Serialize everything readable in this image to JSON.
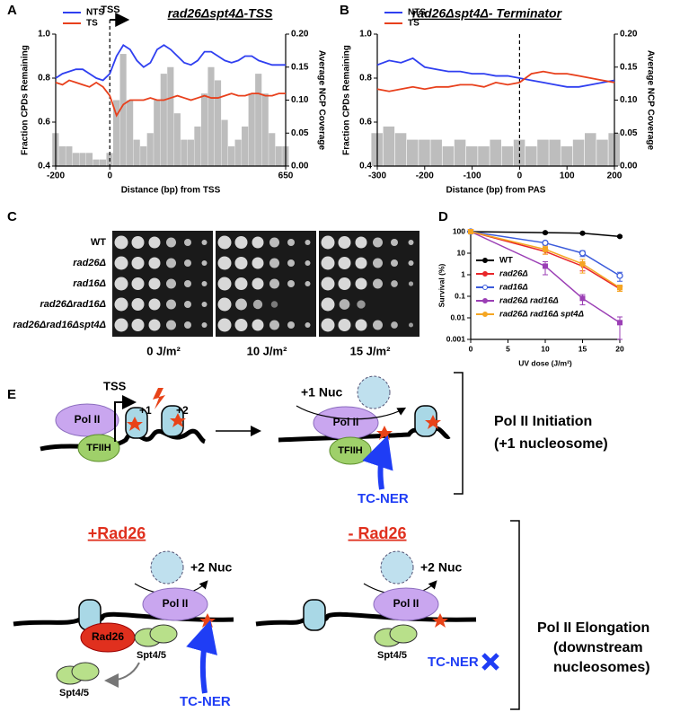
{
  "panel_labels": [
    "A",
    "B",
    "C",
    "D",
    "E"
  ],
  "chart_data": [
    {
      "type": "line",
      "title": "rad26Δspt4Δ-TSS",
      "annotation": "TSS",
      "xlabel": "Distance (bp) from TSS",
      "ylabel": "Fraction CPDs Remaining",
      "y2label": "Average NCP Coverage",
      "x": [
        -200,
        -175,
        -150,
        -125,
        -100,
        -75,
        -50,
        -25,
        0,
        25,
        50,
        75,
        100,
        125,
        150,
        175,
        200,
        225,
        250,
        275,
        300,
        325,
        350,
        375,
        400,
        425,
        450,
        475,
        500,
        525,
        550,
        575,
        600,
        625,
        650
      ],
      "xlim": [
        -200,
        650
      ],
      "xticks": [
        -200,
        0,
        650
      ],
      "ylim": [
        0.4,
        1.0
      ],
      "yticks": [
        0.4,
        0.6,
        0.8,
        {
          "value": 1.0,
          "label": "1.0"
        }
      ],
      "y2lim": [
        0,
        0.2
      ],
      "y2ticks": [
        {
          "value": 0,
          "label": "0.00"
        },
        {
          "value": 0.05,
          "label": "0.05"
        },
        {
          "value": 0.1,
          "label": "0.10"
        },
        {
          "value": 0.15,
          "label": "0.15"
        },
        {
          "value": 0.2,
          "label": "0.20"
        }
      ],
      "vline": 0,
      "legend": "upper left",
      "coverage": {
        "color": "#bdbdbd",
        "axis": "y2",
        "values": [
          0.05,
          0.03,
          0.03,
          0.02,
          0.02,
          0.02,
          0.01,
          0.01,
          0.02,
          0.1,
          0.17,
          0.1,
          0.04,
          0.03,
          0.05,
          0.1,
          0.14,
          0.15,
          0.08,
          0.04,
          0.04,
          0.06,
          0.11,
          0.15,
          0.13,
          0.07,
          0.03,
          0.04,
          0.06,
          0.11,
          0.14,
          0.11,
          0.05,
          0.03,
          0.03
        ]
      },
      "series": [
        {
          "name": "NTS",
          "color": "#2f3ff0",
          "values": [
            0.8,
            0.82,
            0.83,
            0.84,
            0.84,
            0.82,
            0.8,
            0.79,
            0.82,
            0.9,
            0.95,
            0.93,
            0.88,
            0.85,
            0.87,
            0.93,
            0.95,
            0.93,
            0.9,
            0.87,
            0.86,
            0.88,
            0.92,
            0.92,
            0.9,
            0.88,
            0.87,
            0.88,
            0.9,
            0.9,
            0.88,
            0.87,
            0.86,
            0.86,
            0.86
          ]
        },
        {
          "name": "TS",
          "color": "#e8401c",
          "values": [
            0.78,
            0.77,
            0.79,
            0.78,
            0.77,
            0.76,
            0.78,
            0.76,
            0.72,
            0.63,
            0.68,
            0.7,
            0.7,
            0.7,
            0.71,
            0.7,
            0.7,
            0.71,
            0.72,
            0.71,
            0.7,
            0.71,
            0.72,
            0.71,
            0.71,
            0.72,
            0.73,
            0.72,
            0.72,
            0.73,
            0.73,
            0.72,
            0.72,
            0.73,
            0.73
          ]
        }
      ]
    },
    {
      "type": "line",
      "title": "rad26Δspt4Δ- Terminator",
      "xlabel": "Distance (bp) from PAS",
      "ylabel": "Fraction CPDs Remaining",
      "y2label": "Average NCP Coverage",
      "x": [
        -300,
        -275,
        -250,
        -225,
        -200,
        -175,
        -150,
        -125,
        -100,
        -75,
        -50,
        -25,
        0,
        25,
        50,
        75,
        100,
        125,
        150,
        175,
        200
      ],
      "xlim": [
        -300,
        200
      ],
      "xticks": [
        -300,
        -200,
        -100,
        0,
        100,
        200
      ],
      "ylim": [
        0.4,
        1.0
      ],
      "yticks": [
        0.4,
        0.6,
        0.8,
        {
          "value": 1.0,
          "label": "1.0"
        }
      ],
      "y2lim": [
        0,
        0.2
      ],
      "y2ticks": [
        {
          "value": 0,
          "label": "0.00"
        },
        {
          "value": 0.05,
          "label": "0.05"
        },
        {
          "value": 0.1,
          "label": "0.10"
        },
        {
          "value": 0.15,
          "label": "0.15"
        },
        {
          "value": 0.2,
          "label": "0.20"
        }
      ],
      "vline": 0,
      "legend": "upper left",
      "coverage": {
        "color": "#bdbdbd",
        "axis": "y2",
        "values": [
          0.05,
          0.06,
          0.05,
          0.04,
          0.04,
          0.04,
          0.03,
          0.04,
          0.03,
          0.03,
          0.04,
          0.03,
          0.04,
          0.03,
          0.04,
          0.04,
          0.03,
          0.04,
          0.05,
          0.04,
          0.05
        ]
      },
      "series": [
        {
          "name": "NTS",
          "color": "#2f3ff0",
          "values": [
            0.86,
            0.88,
            0.87,
            0.89,
            0.85,
            0.84,
            0.83,
            0.83,
            0.82,
            0.82,
            0.81,
            0.81,
            0.8,
            0.79,
            0.78,
            0.77,
            0.76,
            0.76,
            0.77,
            0.78,
            0.79
          ]
        },
        {
          "name": "TS",
          "color": "#e8401c",
          "values": [
            0.75,
            0.74,
            0.75,
            0.76,
            0.75,
            0.76,
            0.76,
            0.77,
            0.77,
            0.76,
            0.78,
            0.77,
            0.78,
            0.82,
            0.83,
            0.82,
            0.82,
            0.81,
            0.8,
            0.79,
            0.78
          ]
        }
      ]
    },
    {
      "type": "line",
      "xlabel": "UV dose (J/m²)",
      "ylabel": "Survival (%)",
      "log_y": true,
      "x": [
        0,
        10,
        15,
        20
      ],
      "xlim": [
        0,
        20
      ],
      "xticks": [
        0,
        5,
        10,
        15,
        20
      ],
      "ylim": [
        0.001,
        100
      ],
      "yticks": [
        0.001,
        0.01,
        0.1,
        1,
        10,
        100
      ],
      "legend": "lower left",
      "series": [
        {
          "name": "WT",
          "color": "#000000",
          "marker": "circle",
          "values": [
            100,
            90,
            85,
            60
          ],
          "errors": [
            0,
            8,
            6,
            5
          ]
        },
        {
          "name": "rad26Δ",
          "color": "#e8262a",
          "marker": "triangle-down",
          "values": [
            100,
            12,
            2.5,
            0.22
          ],
          "errors": [
            0,
            3,
            1,
            0.05
          ]
        },
        {
          "name": "rad16Δ",
          "color": "#3b5bdb",
          "marker": "circle-open",
          "values": [
            100,
            30,
            10,
            0.9
          ],
          "errors": [
            0,
            6,
            3,
            0.4
          ]
        },
        {
          "name": "rad26Δ rad16Δ",
          "color": "#9b3fb5",
          "marker": "square",
          "values": [
            100,
            2.5,
            0.08,
            0.006
          ],
          "errors": [
            0,
            1.5,
            0.04,
            0.005
          ]
        },
        {
          "name": "rad26Δ rad16Δ spt4Δ",
          "color": "#f5a623",
          "marker": "square",
          "values": [
            100,
            15,
            3.2,
            0.25
          ],
          "errors": [
            0,
            6,
            2,
            0.08
          ]
        }
      ]
    }
  ],
  "spot_assay": {
    "strains": [
      "WT",
      "rad26Δ",
      "rad16Δ",
      "rad26Δrad16Δ",
      "rad26Δrad16Δspt4Δ"
    ],
    "doses": [
      "0 J/m²",
      "10 J/m²",
      "15 J/m²"
    ]
  },
  "diagram": {
    "initiation": {
      "tss": "TSS",
      "plus1": "+1",
      "plus2": "+2",
      "pol2_a": "Pol II",
      "tfiih_a": "TFIIH",
      "nuc": "+1 Nuc",
      "pol2_b": "Pol II",
      "tfiih_b": "TFIIH",
      "tcner": "TC-NER",
      "label1": "Pol II Initiation",
      "label2": "(+1 nucleosome)"
    },
    "plus_rad26": {
      "title": "+Rad26",
      "nuc": "+2 Nuc",
      "pol2": "Pol II",
      "rad26": "Rad26",
      "spt_a": "Spt4/5",
      "spt_b": "Spt4/5",
      "tcner": "TC-NER"
    },
    "minus_rad26": {
      "title": "- Rad26",
      "nuc": "+2 Nuc",
      "pol2": "Pol II",
      "spt": "Spt4/5",
      "tcner": "TC-NER"
    },
    "elongation": {
      "label1": "Pol II Elongation",
      "label2": "(downstream",
      "label3": "nucleosomes)"
    }
  }
}
